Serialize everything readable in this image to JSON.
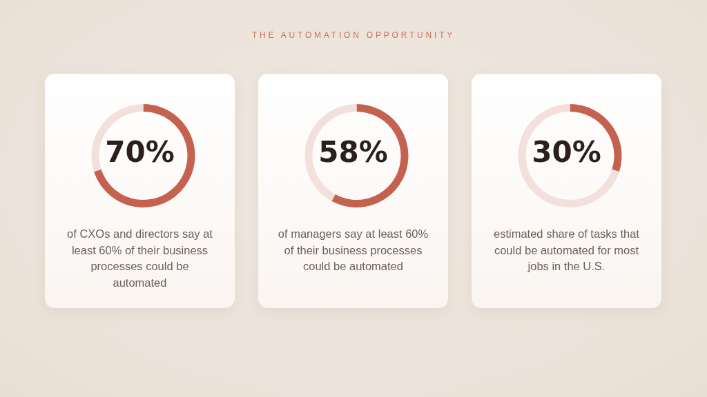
{
  "chart_data": [
    {
      "type": "other",
      "title": "THE AUTOMATION OPPORTUNITY"
    },
    {
      "type": "donut",
      "categories": [
        null,
        null
      ],
      "values": [
        70,
        30
      ],
      "colors": [
        "#c4624f",
        "#f3e0dc"
      ],
      "annotations": [
        "70%",
        "of CXOs and directors say at least 60% of their business processes could be automated"
      ]
    },
    {
      "type": "donut",
      "categories": [
        null,
        null
      ],
      "values": [
        58,
        42
      ],
      "colors": [
        "#c4624f",
        "#f3e0dc"
      ],
      "annotations": [
        "58%",
        "of managers say at least 60% of their business processes could be automated"
      ]
    },
    {
      "type": "donut",
      "categories": [
        null,
        null
      ],
      "values": [
        30,
        70
      ],
      "colors": [
        "#c4624f",
        "#f3e0dc"
      ],
      "annotations": [
        "30%",
        "estimated share of tasks that could be automated for most jobs in the U.S."
      ]
    }
  ]
}
